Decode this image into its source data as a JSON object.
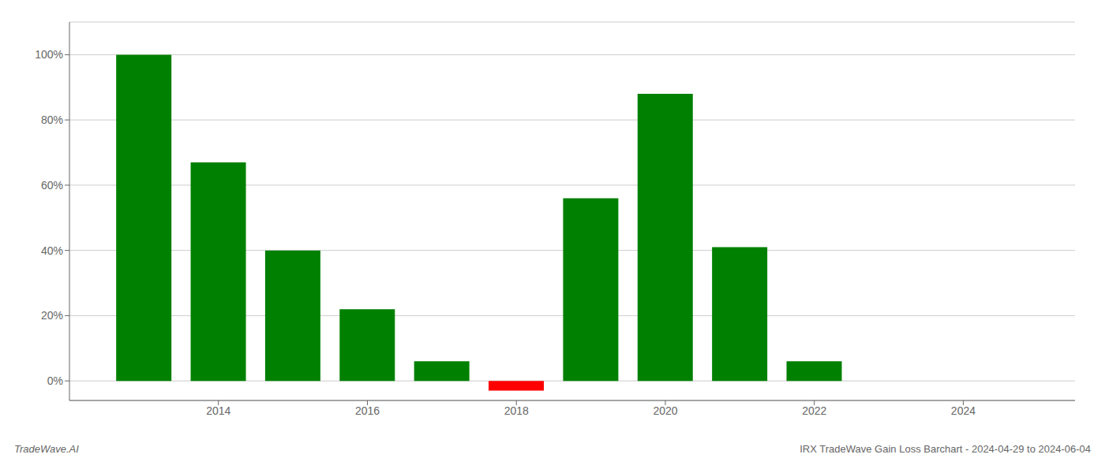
{
  "chart_data": {
    "type": "bar",
    "x": [
      2013,
      2014,
      2015,
      2016,
      2017,
      2018,
      2019,
      2020,
      2021,
      2022,
      2023
    ],
    "values": [
      1.0,
      0.67,
      0.4,
      0.22,
      0.06,
      -0.03,
      0.56,
      0.88,
      0.41,
      0.06,
      0.0
    ],
    "colors": [
      "#008000",
      "#008000",
      "#008000",
      "#008000",
      "#008000",
      "#ff0000",
      "#008000",
      "#008000",
      "#008000",
      "#008000",
      "#008000"
    ],
    "xlim": [
      2012.0,
      2025.5
    ],
    "ylim": [
      -0.06,
      1.1
    ],
    "xticks": [
      2014,
      2016,
      2018,
      2020,
      2022,
      2024
    ],
    "yticks": [
      {
        "value": 0.0,
        "label": "0%"
      },
      {
        "value": 0.2,
        "label": "20%"
      },
      {
        "value": 0.4,
        "label": "40%"
      },
      {
        "value": 0.6,
        "label": "60%"
      },
      {
        "value": 0.8,
        "label": "80%"
      },
      {
        "value": 1.0,
        "label": "100%"
      }
    ],
    "grid": true,
    "annotations": [
      "TradeWave.AI",
      "IRX TradeWave Gain Loss Barchart - 2024-04-29 to 2024-06-04"
    ]
  }
}
